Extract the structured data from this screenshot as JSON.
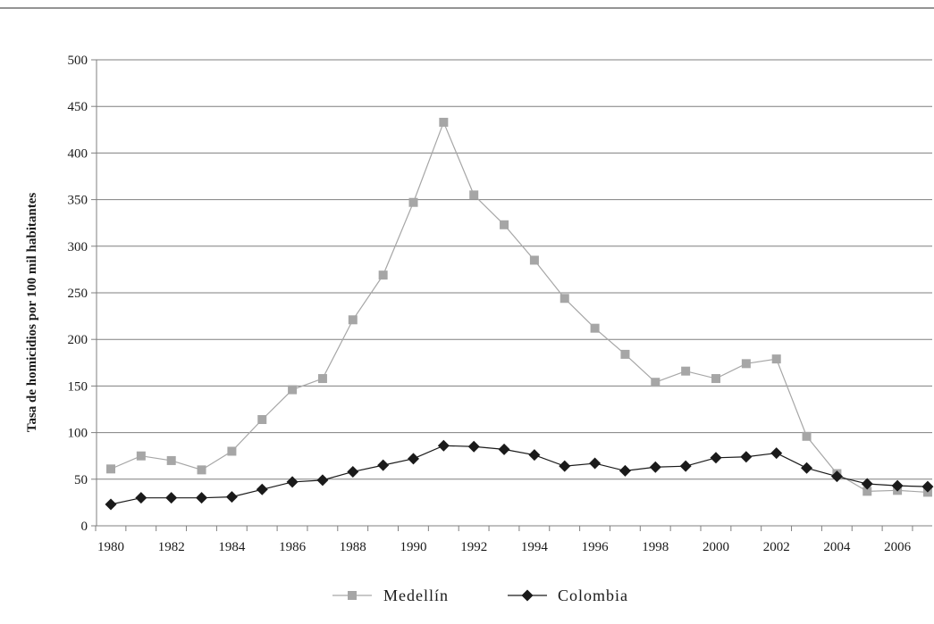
{
  "chart_data": {
    "type": "line",
    "ylabel": "Tasa de homicidios por 100 mil habitantes",
    "xlabel": "",
    "ylim": [
      0,
      500
    ],
    "yticks": [
      "0",
      "50",
      "100",
      "150",
      "200",
      "250",
      "300",
      "350",
      "400",
      "450",
      "500"
    ],
    "xtick_labels": [
      "1980",
      "1982",
      "1984",
      "1986",
      "1988",
      "1990",
      "1992",
      "1994",
      "1996",
      "1998",
      "2000",
      "2002",
      "2004",
      "2006"
    ],
    "x": [
      1980,
      1981,
      1982,
      1983,
      1984,
      1985,
      1986,
      1987,
      1988,
      1989,
      1990,
      1991,
      1992,
      1993,
      1994,
      1995,
      1996,
      1997,
      1998,
      1999,
      2000,
      2001,
      2002,
      2003,
      2004,
      2005,
      2006,
      2007
    ],
    "grid": true,
    "legend_position": "bottom",
    "series": [
      {
        "name": "Medellín",
        "color": "#a6a6a6",
        "marker": "square",
        "values": [
          61,
          75,
          70,
          60,
          80,
          114,
          146,
          158,
          221,
          269,
          347,
          433,
          355,
          323,
          285,
          244,
          212,
          184,
          154,
          166,
          158,
          174,
          179,
          96,
          56,
          37,
          38,
          36
        ]
      },
      {
        "name": "Colombia",
        "color": "#1a1a1a",
        "marker": "diamond",
        "values": [
          23,
          30,
          30,
          30,
          31,
          39,
          47,
          49,
          58,
          65,
          72,
          86,
          85,
          82,
          76,
          64,
          67,
          59,
          63,
          64,
          73,
          74,
          78,
          62,
          53,
          45,
          43,
          42
        ]
      }
    ]
  }
}
